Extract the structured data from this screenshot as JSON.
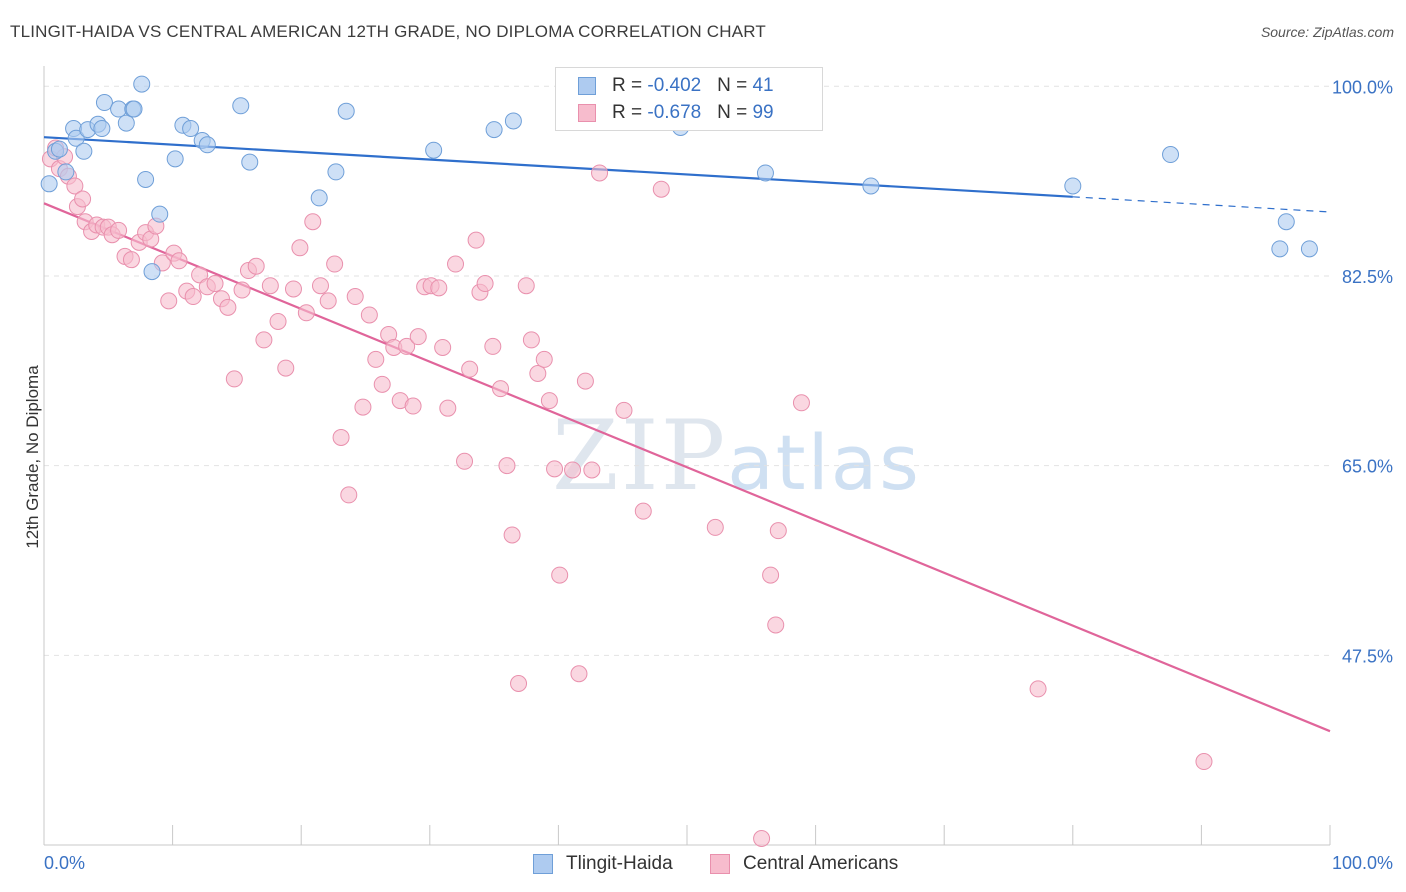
{
  "header": {
    "title": "TLINGIT-HAIDA VS CENTRAL AMERICAN 12TH GRADE, NO DIPLOMA CORRELATION CHART",
    "source": "Source: ZipAtlas.com"
  },
  "watermark": {
    "zip": "ZIP",
    "atlas": "atlas"
  },
  "legend": {
    "rows": [
      {
        "r_label": "R = ",
        "r_value": "-0.402",
        "n_label": "N = ",
        "n_value": "41"
      },
      {
        "r_label": "R = ",
        "r_value": "-0.678",
        "n_label": "N = ",
        "n_value": "99"
      }
    ]
  },
  "colors": {
    "blue_fill": "#aecbf0",
    "blue_stroke": "#6f9fd8",
    "blue_line": "#2f6fcc",
    "pink_fill": "#f7bccd",
    "pink_stroke": "#e990ad",
    "pink_line": "#e0659a",
    "grid": "#e2e2e2",
    "axis_label": "#3a72c4"
  },
  "chart_data": {
    "type": "scatter",
    "title": "TLINGIT-HAIDA VS CENTRAL AMERICAN 12TH GRADE, NO DIPLOMA CORRELATION CHART",
    "xlabel": "",
    "ylabel": "12th Grade, No Diploma",
    "xlim": [
      0,
      100
    ],
    "ylim": [
      30,
      101.5
    ],
    "x_tick_labels": [
      "0.0%",
      "100.0%"
    ],
    "y_ticks": [
      47.5,
      65.0,
      82.5,
      100.0
    ],
    "y_tick_labels": [
      "47.5%",
      "65.0%",
      "82.5%",
      "100.0%"
    ],
    "grid": true,
    "legend_position": "top-center",
    "series": [
      {
        "name": "Tlingit-Haida",
        "r": -0.402,
        "n": 41,
        "trend": {
          "x0": 0,
          "y0": 95.3,
          "x1": 80,
          "y1": 89.8,
          "dashed_to_x": 100,
          "dashed_to_y": 88.4
        },
        "points": [
          [
            0.4,
            91.0
          ],
          [
            0.9,
            94.0
          ],
          [
            1.2,
            94.2
          ],
          [
            1.7,
            92.1
          ],
          [
            2.3,
            96.1
          ],
          [
            2.5,
            95.2
          ],
          [
            3.1,
            94.0
          ],
          [
            3.4,
            96.0
          ],
          [
            4.2,
            96.5
          ],
          [
            4.5,
            96.1
          ],
          [
            4.7,
            98.5
          ],
          [
            5.8,
            97.9
          ],
          [
            6.4,
            96.6
          ],
          [
            6.9,
            97.9
          ],
          [
            7.0,
            97.9
          ],
          [
            7.6,
            100.2
          ],
          [
            7.9,
            91.4
          ],
          [
            8.4,
            82.9
          ],
          [
            9.0,
            88.2
          ],
          [
            10.2,
            93.3
          ],
          [
            10.8,
            96.4
          ],
          [
            11.4,
            96.1
          ],
          [
            12.3,
            95.0
          ],
          [
            12.7,
            94.6
          ],
          [
            15.3,
            98.2
          ],
          [
            16.0,
            93.0
          ],
          [
            21.4,
            89.7
          ],
          [
            22.7,
            92.1
          ],
          [
            23.5,
            97.7
          ],
          [
            30.3,
            94.1
          ],
          [
            35.0,
            96.0
          ],
          [
            36.5,
            96.8
          ],
          [
            49.5,
            96.2
          ],
          [
            50.7,
            99.3
          ],
          [
            56.1,
            92.0
          ],
          [
            64.3,
            90.8
          ],
          [
            80.0,
            90.8
          ],
          [
            87.6,
            93.7
          ],
          [
            96.1,
            85.0
          ],
          [
            96.6,
            87.5
          ],
          [
            98.4,
            85.0
          ]
        ]
      },
      {
        "name": "Central Americans",
        "r": -0.678,
        "n": 99,
        "trend": {
          "x0": 0,
          "y0": 89.2,
          "x1": 100,
          "y1": 40.5
        },
        "points": [
          [
            0.5,
            93.3
          ],
          [
            0.9,
            94.3
          ],
          [
            1.2,
            92.4
          ],
          [
            1.6,
            93.5
          ],
          [
            1.9,
            91.7
          ],
          [
            2.4,
            90.8
          ],
          [
            2.6,
            88.9
          ],
          [
            3.0,
            89.6
          ],
          [
            3.2,
            87.5
          ],
          [
            3.7,
            86.6
          ],
          [
            4.1,
            87.2
          ],
          [
            4.6,
            87.0
          ],
          [
            5.0,
            87.0
          ],
          [
            5.3,
            86.3
          ],
          [
            5.8,
            86.7
          ],
          [
            6.3,
            84.3
          ],
          [
            6.8,
            84.0
          ],
          [
            7.4,
            85.6
          ],
          [
            7.9,
            86.5
          ],
          [
            8.3,
            85.9
          ],
          [
            8.7,
            87.1
          ],
          [
            9.2,
            83.7
          ],
          [
            9.7,
            80.2
          ],
          [
            10.1,
            84.6
          ],
          [
            10.5,
            83.9
          ],
          [
            11.1,
            81.1
          ],
          [
            11.6,
            80.6
          ],
          [
            12.1,
            82.6
          ],
          [
            12.7,
            81.5
          ],
          [
            13.3,
            81.8
          ],
          [
            13.8,
            80.4
          ],
          [
            14.3,
            79.6
          ],
          [
            14.8,
            73.0
          ],
          [
            15.4,
            81.2
          ],
          [
            15.9,
            83.0
          ],
          [
            16.5,
            83.4
          ],
          [
            17.1,
            76.6
          ],
          [
            17.6,
            81.6
          ],
          [
            18.2,
            78.3
          ],
          [
            18.8,
            74.0
          ],
          [
            19.4,
            81.3
          ],
          [
            19.9,
            85.1
          ],
          [
            20.4,
            79.1
          ],
          [
            20.9,
            87.5
          ],
          [
            21.5,
            81.6
          ],
          [
            22.1,
            80.2
          ],
          [
            22.6,
            83.6
          ],
          [
            23.1,
            67.6
          ],
          [
            23.7,
            62.3
          ],
          [
            24.2,
            80.6
          ],
          [
            24.8,
            70.4
          ],
          [
            25.3,
            78.9
          ],
          [
            25.8,
            74.8
          ],
          [
            26.3,
            72.5
          ],
          [
            26.8,
            77.1
          ],
          [
            27.2,
            75.9
          ],
          [
            27.7,
            71.0
          ],
          [
            28.2,
            76.0
          ],
          [
            28.7,
            70.5
          ],
          [
            29.1,
            76.9
          ],
          [
            29.6,
            81.5
          ],
          [
            30.1,
            81.6
          ],
          [
            30.7,
            81.4
          ],
          [
            31.0,
            75.9
          ],
          [
            31.4,
            70.3
          ],
          [
            32.0,
            83.6
          ],
          [
            32.7,
            65.4
          ],
          [
            33.1,
            73.9
          ],
          [
            33.6,
            85.8
          ],
          [
            33.9,
            81.0
          ],
          [
            34.3,
            81.8
          ],
          [
            34.9,
            76.0
          ],
          [
            35.5,
            72.1
          ],
          [
            36.0,
            65.0
          ],
          [
            36.4,
            58.6
          ],
          [
            36.9,
            44.9
          ],
          [
            37.5,
            81.6
          ],
          [
            37.9,
            76.6
          ],
          [
            38.4,
            73.5
          ],
          [
            38.9,
            74.8
          ],
          [
            39.3,
            71.0
          ],
          [
            39.7,
            64.7
          ],
          [
            40.1,
            54.9
          ],
          [
            41.1,
            64.6
          ],
          [
            41.6,
            45.8
          ],
          [
            42.1,
            72.8
          ],
          [
            42.6,
            64.6
          ],
          [
            43.2,
            92.0
          ],
          [
            45.1,
            70.1
          ],
          [
            46.6,
            60.8
          ],
          [
            48.0,
            90.5
          ],
          [
            48.7,
            100.1
          ],
          [
            52.2,
            59.3
          ],
          [
            56.5,
            54.9
          ],
          [
            56.9,
            50.3
          ],
          [
            57.1,
            59.0
          ],
          [
            58.9,
            70.8
          ],
          [
            77.3,
            44.4
          ],
          [
            90.2,
            37.7
          ],
          [
            55.8,
            30.6
          ]
        ]
      }
    ]
  }
}
